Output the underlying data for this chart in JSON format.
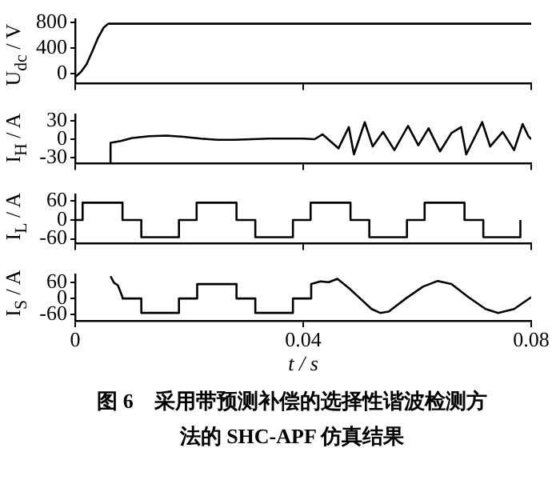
{
  "chart_data": [
    {
      "type": "line",
      "ylabel": "U$_{dc}$ / V",
      "xlim": [
        0,
        0.08
      ],
      "xticks": [
        0,
        0.04,
        0.08
      ],
      "ylim": [
        -150,
        850
      ],
      "yticks": [
        0,
        400,
        800
      ],
      "tick_labels": "y",
      "grid": false,
      "legend": false,
      "marker": "none",
      "series": [
        {
          "color": "#000000",
          "x": [
            0,
            0.001,
            0.002,
            0.003,
            0.004,
            0.005,
            0.0058,
            0.08
          ],
          "values": [
            -50,
            30,
            150,
            350,
            560,
            720,
            780,
            780
          ]
        }
      ]
    },
    {
      "type": "line",
      "ylabel": "I$_{H}$ / A",
      "xlim": [
        0,
        0.08
      ],
      "xticks": [
        0,
        0.04,
        0.08
      ],
      "ylim": [
        -40,
        40
      ],
      "yticks": [
        -30,
        0,
        30
      ],
      "tick_labels": "y",
      "grid": false,
      "legend": false,
      "marker": "none",
      "series": [
        {
          "color": "#000000",
          "x": [
            0.0062,
            0.0062,
            0.008,
            0.01,
            0.013,
            0.016,
            0.019,
            0.022,
            0.025,
            0.028,
            0.031,
            0.034,
            0.037,
            0.04,
            0.042,
            0.0434,
            0.0462,
            0.048,
            0.0489,
            0.0508,
            0.0522,
            0.054,
            0.056,
            0.0584,
            0.0602,
            0.062,
            0.064,
            0.066,
            0.0677,
            0.0686,
            0.0714,
            0.0728,
            0.075,
            0.077,
            0.0785,
            0.0795,
            0.08
          ],
          "values": [
            -40,
            -6,
            -3,
            2,
            5,
            6,
            4,
            1,
            -1,
            -1,
            0,
            1,
            1,
            1,
            0,
            8,
            -15,
            20,
            -25,
            28,
            -12,
            12,
            -18,
            22,
            -10,
            18,
            -20,
            10,
            20,
            -25,
            28,
            -12,
            12,
            -18,
            25,
            5,
            0
          ]
        }
      ]
    },
    {
      "type": "line",
      "ylabel": "I$_{L}$ / A",
      "xlim": [
        0,
        0.08
      ],
      "xticks": [
        0,
        0.04,
        0.08
      ],
      "ylim": [
        -75,
        80
      ],
      "yticks": [
        -60,
        0,
        60
      ],
      "tick_labels": "y",
      "grid": false,
      "legend": false,
      "marker": "none",
      "series": [
        {
          "color": "#000000",
          "x": [
            0,
            0.0013,
            0.0013,
            0.0083,
            0.0083,
            0.0116,
            0.0116,
            0.0182,
            0.0182,
            0.0213,
            0.0213,
            0.0283,
            0.0283,
            0.0316,
            0.0316,
            0.0382,
            0.0382,
            0.0413,
            0.0413,
            0.0483,
            0.0483,
            0.0516,
            0.0516,
            0.0582,
            0.0582,
            0.0613,
            0.0613,
            0.0683,
            0.0683,
            0.0716,
            0.0716,
            0.0781,
            0.0781
          ],
          "values": [
            0,
            0,
            55,
            55,
            0,
            0,
            -55,
            -55,
            0,
            0,
            55,
            55,
            0,
            0,
            -55,
            -55,
            0,
            0,
            55,
            55,
            0,
            0,
            -55,
            -55,
            0,
            0,
            55,
            55,
            0,
            0,
            -55,
            -55,
            0
          ]
        }
      ]
    },
    {
      "type": "line",
      "xlabel": "t / s",
      "ylabel": "I$_{S}$ / A",
      "xlim": [
        0,
        0.08
      ],
      "xticks": [
        0,
        0.04,
        0.08
      ],
      "ylim": [
        -85,
        90
      ],
      "yticks": [
        -60,
        0,
        60
      ],
      "grid": false,
      "legend": false,
      "marker": "none",
      "annotations": [
        "图 6　采用带预测补偿的选择性谐波检测方法的 SHC-APF 仿真结果"
      ],
      "series": [
        {
          "color": "#000000",
          "x": [
            0.0062,
            0.0068,
            0.0075,
            0.0083,
            0.0083,
            0.0116,
            0.0116,
            0.0182,
            0.0182,
            0.0214,
            0.0214,
            0.0283,
            0.0283,
            0.0316,
            0.0316,
            0.0382,
            0.0382,
            0.0414,
            0.0414,
            0.043,
            0.0445,
            0.046,
            0.048,
            0.05,
            0.052,
            0.0535,
            0.055,
            0.058,
            0.061,
            0.0636,
            0.066,
            0.069,
            0.072,
            0.0742,
            0.077,
            0.08
          ],
          "values": [
            85,
            60,
            50,
            5,
            0,
            0,
            -55,
            -55,
            0,
            0,
            55,
            55,
            0,
            0,
            -55,
            -55,
            0,
            0,
            55,
            65,
            62,
            75,
            40,
            0,
            -40,
            -55,
            -50,
            0,
            45,
            67,
            55,
            5,
            -40,
            -55,
            -40,
            5
          ]
        }
      ]
    }
  ]
}
